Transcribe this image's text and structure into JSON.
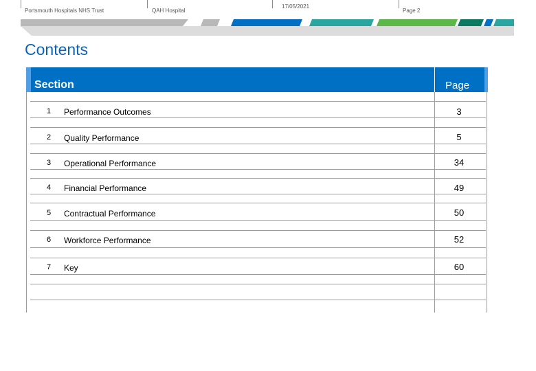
{
  "header": {
    "org": "Portsmouth Hospitals NHS Trust",
    "site": "QAH Hospital",
    "date": "17/05/2021",
    "page_label": "Page 2"
  },
  "banner": {
    "colors": [
      "#b6b6b6",
      "#b6b6b6",
      "#0070c4",
      "#2aa6a0",
      "#5cb648",
      "#0a7a63",
      "#0070c4",
      "#2aa6a0"
    ]
  },
  "title": "Contents",
  "toc": {
    "section_header": "Section",
    "page_header": "Page",
    "rows": [
      {
        "num": "1",
        "label": "Performance Outcomes",
        "page": "3"
      },
      {
        "num": "2",
        "label": "Quality Performance",
        "page": "5"
      },
      {
        "num": "3",
        "label": "Operational Performance",
        "page": "34"
      },
      {
        "num": "4",
        "label": "Financial Performance",
        "page": "49"
      },
      {
        "num": "5",
        "label": "Contractual Performance",
        "page": "50"
      },
      {
        "num": "6",
        "label": "Workforce Performance",
        "page": "52"
      },
      {
        "num": "7",
        "label": "Key",
        "page": "60"
      }
    ]
  }
}
